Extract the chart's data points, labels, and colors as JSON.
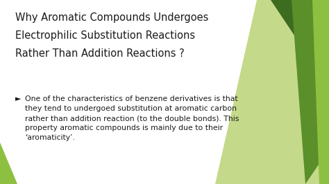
{
  "title_lines": [
    "Why Aromatic Compounds Undergoes",
    "Electrophilic Substitution Reactions",
    "Rather Than Addition Reactions ?"
  ],
  "bullet_symbol": "►",
  "bullet_text_lines": [
    "One of the characteristics of benzene derivatives is that",
    "they tend to undergoed substitution at aromatic carbon",
    "rather than addition reaction (to the double bonds). This",
    "property aromatic compounds is mainly due to their",
    "‘aromaticity’."
  ],
  "bg_color": "#ffffff",
  "title_color": "#1a1a1a",
  "body_color": "#1a1a1a",
  "green_dark": "#3d6b20",
  "green_mid": "#5a8f2a",
  "green_light": "#8dc040",
  "green_pale": "#c5d98a",
  "title_fontsize": 10.5,
  "body_fontsize": 7.8
}
